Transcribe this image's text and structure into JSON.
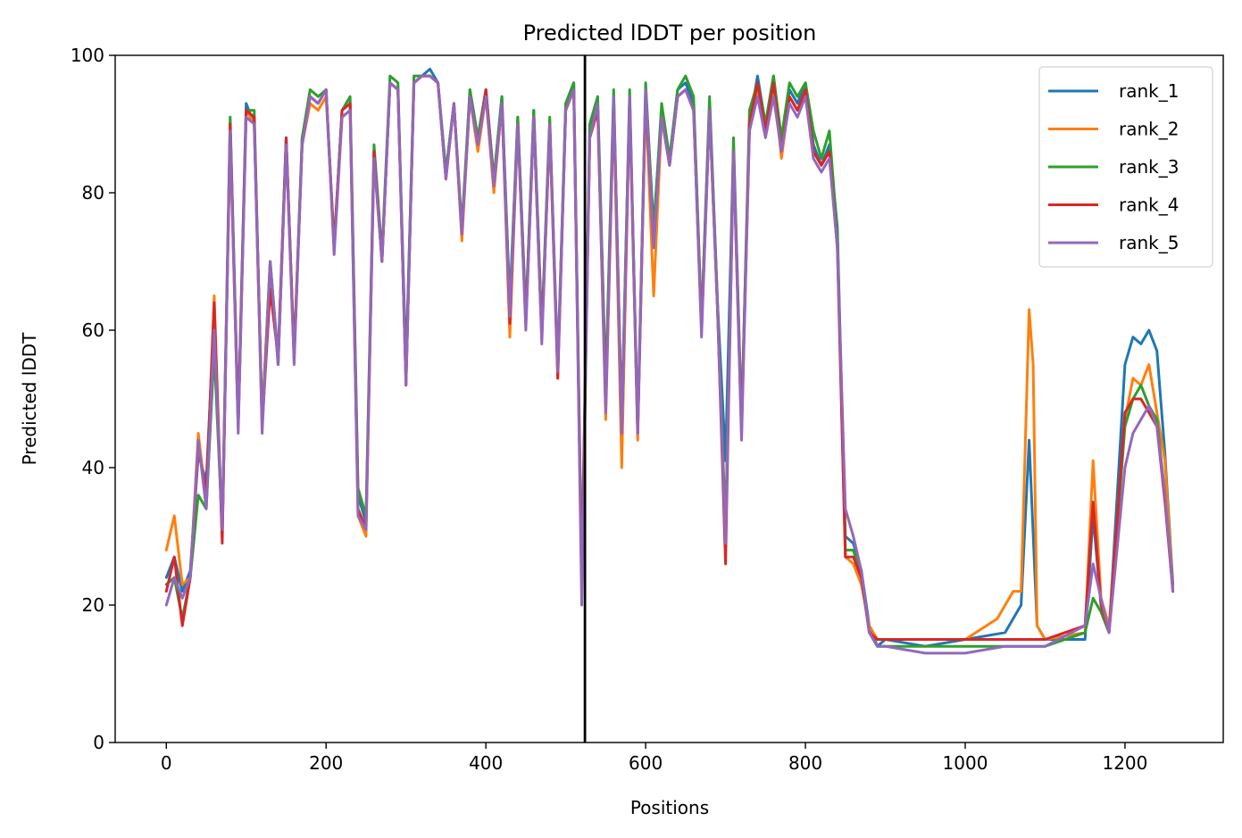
{
  "chart_data": {
    "type": "line",
    "title": "Predicted lDDT per position",
    "xlabel": "Positions",
    "ylabel": "Predicted lDDT",
    "xlim": [
      -64,
      1323
    ],
    "ylim": [
      0,
      100
    ],
    "xticks": [
      0,
      200,
      400,
      600,
      800,
      1000,
      1200
    ],
    "yticks": [
      0,
      20,
      40,
      60,
      80,
      100
    ],
    "grid": false,
    "legend_position": "top-right",
    "vline": {
      "x": 524,
      "color": "#000000"
    },
    "series": [
      {
        "name": "rank_1",
        "color": "#1f77b4",
        "x": [
          0,
          10,
          20,
          30,
          40,
          50,
          60,
          70,
          80,
          90,
          100,
          110,
          120,
          130,
          140,
          150,
          160,
          170,
          180,
          190,
          200,
          210,
          220,
          230,
          240,
          250,
          260,
          270,
          280,
          290,
          300,
          310,
          320,
          330,
          340,
          350,
          360,
          370,
          380,
          390,
          400,
          410,
          420,
          430,
          440,
          450,
          460,
          470,
          480,
          490,
          500,
          510,
          520,
          530,
          540,
          550,
          560,
          570,
          580,
          590,
          600,
          610,
          620,
          630,
          640,
          650,
          660,
          670,
          680,
          690,
          700,
          710,
          720,
          730,
          740,
          750,
          760,
          770,
          780,
          790,
          800,
          810,
          820,
          830,
          840,
          850,
          860,
          870,
          880,
          890,
          900,
          950,
          1000,
          1050,
          1070,
          1080,
          1090,
          1100,
          1150,
          1160,
          1170,
          1180,
          1200,
          1210,
          1220,
          1230,
          1240,
          1250,
          1260
        ],
        "y": [
          24,
          27,
          22,
          25,
          42,
          38,
          62,
          30,
          90,
          47,
          93,
          90,
          47,
          70,
          56,
          88,
          56,
          88,
          94,
          93,
          95,
          72,
          92,
          93,
          36,
          32,
          86,
          70,
          96,
          95,
          55,
          96,
          97,
          98,
          96,
          83,
          93,
          74,
          95,
          88,
          95,
          82,
          94,
          64,
          91,
          62,
          92,
          60,
          90,
          55,
          93,
          96,
          25,
          89,
          93,
          51,
          94,
          47,
          94,
          46,
          95,
          75,
          92,
          85,
          95,
          96,
          93,
          61,
          93,
          64,
          41,
          87,
          47,
          90,
          97,
          90,
          97,
          87,
          95,
          93,
          96,
          87,
          84,
          87,
          75,
          30,
          29,
          25,
          17,
          14,
          15,
          14,
          15,
          16,
          20,
          44,
          17,
          15,
          15,
          33,
          20,
          16,
          55,
          59,
          58,
          60,
          57,
          42,
          23
        ]
      },
      {
        "name": "rank_2",
        "color": "#ff7f0e",
        "x": [
          0,
          10,
          20,
          30,
          40,
          50,
          60,
          70,
          80,
          90,
          100,
          110,
          120,
          130,
          140,
          150,
          160,
          170,
          180,
          190,
          200,
          210,
          220,
          230,
          240,
          250,
          260,
          270,
          280,
          290,
          300,
          310,
          320,
          330,
          340,
          350,
          360,
          370,
          380,
          390,
          400,
          410,
          420,
          430,
          440,
          450,
          460,
          470,
          480,
          490,
          500,
          510,
          520,
          530,
          540,
          550,
          560,
          570,
          580,
          590,
          600,
          610,
          620,
          630,
          640,
          650,
          660,
          670,
          680,
          690,
          700,
          710,
          720,
          730,
          740,
          750,
          760,
          770,
          780,
          790,
          800,
          810,
          820,
          830,
          840,
          850,
          860,
          870,
          880,
          890,
          900,
          950,
          1000,
          1040,
          1060,
          1070,
          1080,
          1085,
          1090,
          1100,
          1150,
          1160,
          1170,
          1180,
          1200,
          1210,
          1220,
          1230,
          1240,
          1250,
          1260
        ],
        "y": [
          28,
          33,
          23,
          24,
          45,
          35,
          65,
          30,
          88,
          46,
          92,
          90,
          47,
          70,
          55,
          87,
          57,
          87,
          93,
          92,
          94,
          73,
          91,
          92,
          33,
          30,
          85,
          70,
          96,
          95,
          52,
          96,
          97,
          97,
          96,
          82,
          93,
          73,
          94,
          86,
          94,
          80,
          93,
          59,
          90,
          61,
          91,
          59,
          89,
          53,
          92,
          95,
          24,
          88,
          92,
          47,
          93,
          40,
          93,
          44,
          94,
          65,
          91,
          84,
          94,
          95,
          92,
          60,
          92,
          63,
          30,
          86,
          46,
          89,
          95,
          89,
          96,
          85,
          94,
          92,
          95,
          86,
          84,
          86,
          73,
          27,
          26,
          23,
          17,
          15,
          15,
          15,
          15,
          18,
          22,
          22,
          63,
          55,
          17,
          15,
          16,
          41,
          21,
          17,
          47,
          53,
          52,
          55,
          48,
          41,
          22
        ]
      },
      {
        "name": "rank_3",
        "color": "#2ca02c",
        "x": [
          0,
          10,
          20,
          30,
          40,
          50,
          60,
          70,
          80,
          90,
          100,
          110,
          120,
          130,
          140,
          150,
          160,
          170,
          180,
          190,
          200,
          210,
          220,
          230,
          240,
          250,
          260,
          270,
          280,
          290,
          300,
          310,
          320,
          330,
          340,
          350,
          360,
          370,
          380,
          390,
          400,
          410,
          420,
          430,
          440,
          450,
          460,
          470,
          480,
          490,
          500,
          510,
          520,
          530,
          540,
          550,
          560,
          570,
          580,
          590,
          600,
          610,
          620,
          630,
          640,
          650,
          660,
          670,
          680,
          690,
          700,
          710,
          720,
          730,
          740,
          750,
          760,
          770,
          780,
          790,
          800,
          810,
          820,
          830,
          840,
          850,
          860,
          870,
          880,
          890,
          900,
          950,
          1000,
          1050,
          1100,
          1150,
          1160,
          1170,
          1180,
          1200,
          1210,
          1220,
          1230,
          1240,
          1250,
          1260
        ],
        "y": [
          23,
          24,
          18,
          24,
          36,
          34,
          57,
          31,
          91,
          46,
          92,
          92,
          46,
          70,
          55,
          88,
          56,
          88,
          95,
          94,
          95,
          72,
          92,
          94,
          37,
          33,
          87,
          71,
          97,
          96,
          53,
          97,
          97,
          97,
          96,
          83,
          93,
          75,
          95,
          88,
          95,
          82,
          94,
          63,
          91,
          62,
          92,
          60,
          91,
          54,
          93,
          96,
          23,
          90,
          94,
          52,
          95,
          46,
          95,
          45,
          96,
          74,
          93,
          85,
          95,
          97,
          94,
          61,
          94,
          64,
          31,
          88,
          46,
          92,
          96,
          90,
          97,
          88,
          96,
          94,
          96,
          89,
          85,
          89,
          74,
          28,
          28,
          24,
          16,
          14,
          14,
          14,
          14,
          14,
          14,
          16,
          21,
          19,
          16,
          46,
          50,
          52,
          49,
          47,
          36,
          22
        ]
      },
      {
        "name": "rank_4",
        "color": "#d62728",
        "x": [
          0,
          10,
          20,
          30,
          40,
          50,
          60,
          70,
          80,
          90,
          100,
          110,
          120,
          130,
          140,
          150,
          160,
          170,
          180,
          190,
          200,
          210,
          220,
          230,
          240,
          250,
          260,
          270,
          280,
          290,
          300,
          310,
          320,
          330,
          340,
          350,
          360,
          370,
          380,
          390,
          400,
          410,
          420,
          430,
          440,
          450,
          460,
          470,
          480,
          490,
          500,
          510,
          520,
          530,
          540,
          550,
          560,
          570,
          580,
          590,
          600,
          610,
          620,
          630,
          640,
          650,
          660,
          670,
          680,
          690,
          700,
          710,
          720,
          730,
          740,
          750,
          760,
          770,
          780,
          790,
          800,
          810,
          820,
          830,
          840,
          850,
          860,
          870,
          880,
          890,
          900,
          950,
          1000,
          1050,
          1100,
          1150,
          1160,
          1170,
          1180,
          1200,
          1210,
          1220,
          1230,
          1240,
          1250,
          1260
        ],
        "y": [
          22,
          27,
          17,
          24,
          43,
          36,
          64,
          29,
          90,
          46,
          92,
          91,
          46,
          66,
          56,
          88,
          56,
          87,
          94,
          93,
          95,
          72,
          92,
          93,
          34,
          31,
          86,
          70,
          96,
          95,
          52,
          96,
          97,
          97,
          96,
          82,
          93,
          74,
          94,
          87,
          95,
          81,
          93,
          61,
          90,
          61,
          91,
          59,
          90,
          53,
          92,
          95,
          23,
          88,
          92,
          49,
          93,
          45,
          93,
          45,
          94,
          72,
          91,
          84,
          94,
          95,
          92,
          60,
          92,
          63,
          26,
          86,
          45,
          90,
          96,
          89,
          96,
          86,
          94,
          92,
          95,
          86,
          84,
          86,
          72,
          27,
          27,
          24,
          16,
          15,
          15,
          15,
          15,
          15,
          15,
          17,
          35,
          20,
          16,
          48,
          50,
          50,
          48,
          46,
          35,
          22
        ]
      },
      {
        "name": "rank_5",
        "color": "#9467bd",
        "x": [
          0,
          10,
          20,
          30,
          40,
          50,
          60,
          70,
          80,
          90,
          100,
          110,
          120,
          130,
          140,
          150,
          160,
          170,
          180,
          190,
          200,
          210,
          220,
          230,
          240,
          250,
          260,
          270,
          280,
          290,
          300,
          310,
          320,
          330,
          340,
          350,
          360,
          370,
          380,
          390,
          400,
          410,
          420,
          430,
          440,
          450,
          460,
          470,
          480,
          490,
          500,
          510,
          520,
          530,
          540,
          550,
          560,
          570,
          580,
          590,
          600,
          610,
          620,
          630,
          640,
          650,
          660,
          670,
          680,
          690,
          700,
          710,
          720,
          730,
          740,
          750,
          760,
          770,
          780,
          790,
          800,
          810,
          820,
          830,
          840,
          850,
          860,
          870,
          880,
          890,
          900,
          950,
          1000,
          1050,
          1100,
          1150,
          1160,
          1170,
          1180,
          1200,
          1210,
          1220,
          1230,
          1240,
          1250,
          1260
        ],
        "y": [
          20,
          24,
          21,
          24,
          44,
          34,
          60,
          31,
          89,
          45,
          91,
          90,
          45,
          70,
          55,
          87,
          55,
          87,
          94,
          93,
          95,
          71,
          91,
          92,
          33,
          31,
          85,
          70,
          96,
          95,
          52,
          96,
          97,
          97,
          96,
          82,
          93,
          74,
          94,
          87,
          94,
          81,
          93,
          62,
          90,
          60,
          91,
          58,
          90,
          54,
          92,
          95,
          20,
          88,
          93,
          48,
          94,
          45,
          94,
          45,
          95,
          72,
          91,
          84,
          94,
          95,
          92,
          59,
          92,
          63,
          29,
          86,
          44,
          89,
          94,
          88,
          94,
          86,
          93,
          91,
          94,
          85,
          83,
          85,
          72,
          34,
          30,
          25,
          16,
          14,
          14,
          13,
          13,
          14,
          14,
          17,
          26,
          21,
          16,
          40,
          45,
          47,
          49,
          46,
          36,
          22
        ]
      }
    ]
  }
}
